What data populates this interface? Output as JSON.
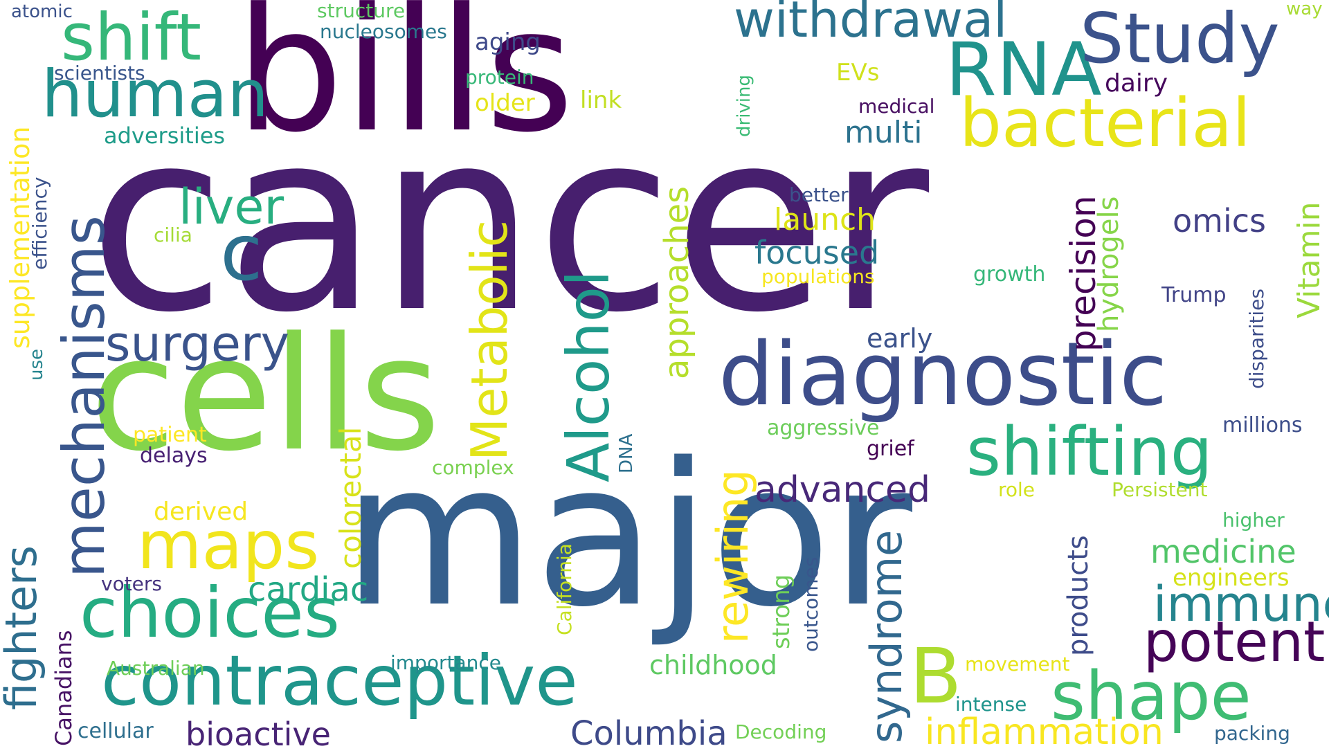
{
  "words": [
    {
      "text": "cancer",
      "color": "#471f6e"
    },
    {
      "text": "major",
      "color": "#355f8d"
    },
    {
      "text": "bills",
      "color": "#440154"
    },
    {
      "text": "cells",
      "color": "#84d44b"
    },
    {
      "text": "diagnostic",
      "color": "#3d4d8a"
    },
    {
      "text": "contraceptive",
      "color": "#1f958b"
    },
    {
      "text": "choices",
      "color": "#25ac82"
    },
    {
      "text": "mechanisms",
      "color": "#39568c"
    },
    {
      "text": "human",
      "color": "#21908c"
    },
    {
      "text": "shift",
      "color": "#35b779"
    },
    {
      "text": "RNA",
      "color": "#20938c"
    },
    {
      "text": "Study",
      "color": "#3b528b"
    },
    {
      "text": "bacterial",
      "color": "#e8e419"
    },
    {
      "text": "shifting",
      "color": "#2ab07f"
    },
    {
      "text": "shape",
      "color": "#3fbc73"
    },
    {
      "text": "maps",
      "color": "#f1e51d"
    },
    {
      "text": "Alcohol",
      "color": "#1f9a8a"
    },
    {
      "text": "Metabolic",
      "color": "#e2e418"
    },
    {
      "text": "withdrawal",
      "color": "#2c728e"
    },
    {
      "text": "surgery",
      "color": "#3a538b"
    },
    {
      "text": "liver",
      "color": "#28ae80"
    },
    {
      "text": "c",
      "color": "#2d708e"
    },
    {
      "text": "potent",
      "color": "#450457"
    },
    {
      "text": "B",
      "color": "#addc30"
    },
    {
      "text": "immune",
      "color": "#25848e"
    },
    {
      "text": "fighters",
      "color": "#2e6e8e"
    },
    {
      "text": "syndrome",
      "color": "#31688e"
    },
    {
      "text": "rewiring",
      "color": "#fde725"
    },
    {
      "text": "approaches",
      "color": "#b5de2b"
    },
    {
      "text": "advanced",
      "color": "#482878"
    },
    {
      "text": "inflammation",
      "color": "#f8e621"
    },
    {
      "text": "Columbia",
      "color": "#3e4a89"
    },
    {
      "text": "bioactive",
      "color": "#482475"
    },
    {
      "text": "cardiac",
      "color": "#22a884"
    },
    {
      "text": "childhood",
      "color": "#5ec962"
    },
    {
      "text": "colorectal",
      "color": "#d8e219"
    },
    {
      "text": "products",
      "color": "#3e4c8a"
    },
    {
      "text": "precision",
      "color": "#440154"
    },
    {
      "text": "hydrogels",
      "color": "#86d549"
    },
    {
      "text": "Vitamin",
      "color": "#9bd93c"
    },
    {
      "text": "medicine",
      "color": "#52c569"
    },
    {
      "text": "multi",
      "color": "#2c728e"
    },
    {
      "text": "focused",
      "color": "#2a788e"
    },
    {
      "text": "omics",
      "color": "#424086"
    },
    {
      "text": "launch",
      "color": "#dde318"
    },
    {
      "text": "supplementation",
      "color": "#fde725"
    },
    {
      "text": "adversities",
      "color": "#1e9c89"
    },
    {
      "text": "engineers",
      "color": "#d5e21a"
    },
    {
      "text": "dairy",
      "color": "#46085c"
    },
    {
      "text": "early",
      "color": "#3b528b"
    },
    {
      "text": "aging",
      "color": "#3e4989"
    },
    {
      "text": "older",
      "color": "#e5e419"
    },
    {
      "text": "link",
      "color": "#c2df23"
    },
    {
      "text": "EVs",
      "color": "#d0e11c"
    },
    {
      "text": "medical",
      "color": "#470e61"
    },
    {
      "text": "derived",
      "color": "#f6e620"
    },
    {
      "text": "patient",
      "color": "#fde725"
    },
    {
      "text": "delays",
      "color": "#482173"
    },
    {
      "text": "complex",
      "color": "#7ad151"
    },
    {
      "text": "aggressive",
      "color": "#6ccd5a"
    },
    {
      "text": "grief",
      "color": "#440154"
    },
    {
      "text": "millions",
      "color": "#3d4e8a"
    },
    {
      "text": "Persistent",
      "color": "#b0dd2f"
    },
    {
      "text": "role",
      "color": "#d2e21b"
    },
    {
      "text": "higher",
      "color": "#4ac16d"
    },
    {
      "text": "voters",
      "color": "#46337f"
    },
    {
      "text": "Australian",
      "color": "#6ece58"
    },
    {
      "text": "importance",
      "color": "#23898e"
    },
    {
      "text": "movement",
      "color": "#e7e419"
    },
    {
      "text": "intense",
      "color": "#1f948c"
    },
    {
      "text": "cellular",
      "color": "#2e6f8e"
    },
    {
      "text": "Decoding",
      "color": "#73d056"
    },
    {
      "text": "packing",
      "color": "#31668e"
    },
    {
      "text": "Canadians",
      "color": "#471365"
    },
    {
      "text": "California",
      "color": "#c5e021"
    },
    {
      "text": "strong",
      "color": "#6ece58"
    },
    {
      "text": "outcomes",
      "color": "#39568c"
    },
    {
      "text": "DNA",
      "color": "#2d708e"
    },
    {
      "text": "better",
      "color": "#3b528b"
    },
    {
      "text": "populations",
      "color": "#f6e620"
    },
    {
      "text": "growth",
      "color": "#35b779"
    },
    {
      "text": "Trump",
      "color": "#414487"
    },
    {
      "text": "disparities",
      "color": "#3d4d8a"
    },
    {
      "text": "cilia",
      "color": "#a5db36"
    },
    {
      "text": "efficiency",
      "color": "#3b528b"
    },
    {
      "text": "use",
      "color": "#25848e"
    },
    {
      "text": "driving",
      "color": "#3bbb75"
    },
    {
      "text": "scientists",
      "color": "#39568c"
    },
    {
      "text": "protein",
      "color": "#37b878"
    },
    {
      "text": "nucleosomes",
      "color": "#2a788e"
    },
    {
      "text": "structure",
      "color": "#5ec962"
    },
    {
      "text": "atomic",
      "color": "#3b528b"
    },
    {
      "text": "way",
      "color": "#a8db34"
    }
  ]
}
